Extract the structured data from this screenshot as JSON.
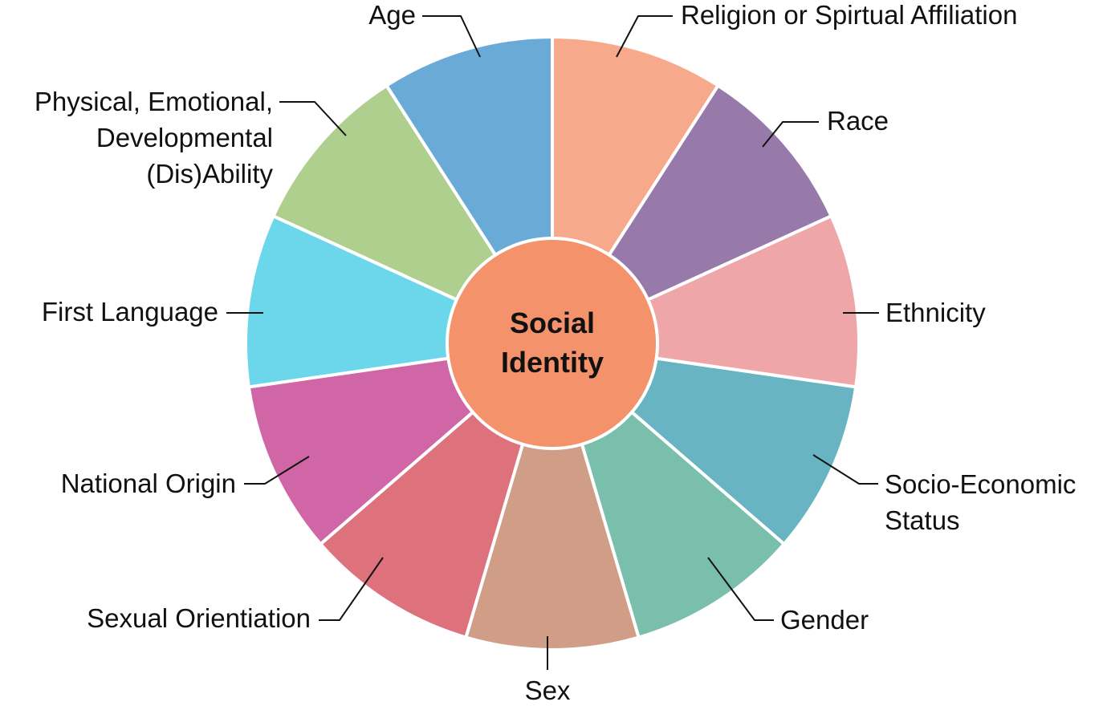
{
  "center": {
    "line1": "Social",
    "line2": "Identity",
    "color": "#F3926B"
  },
  "segments": [
    {
      "name": "religion",
      "lines": [
        "Religion or Spirtual Affiliation"
      ],
      "color": "#F7AA8B"
    },
    {
      "name": "race",
      "lines": [
        "Race"
      ],
      "color": "#977AAA"
    },
    {
      "name": "ethnicity",
      "lines": [
        "Ethnicity"
      ],
      "color": "#EEA6A9"
    },
    {
      "name": "socio-economic-status",
      "lines": [
        "Socio-Economic",
        "Status"
      ],
      "color": "#68B4C2"
    },
    {
      "name": "gender",
      "lines": [
        "Gender"
      ],
      "color": "#7ABFAB"
    },
    {
      "name": "sex",
      "lines": [
        "Sex"
      ],
      "color": "#D09E87"
    },
    {
      "name": "sexual-orientation",
      "lines": [
        "Sexual Orientiation"
      ],
      "color": "#DD727D"
    },
    {
      "name": "national-origin",
      "lines": [
        "National Origin"
      ],
      "color": "#D066A6"
    },
    {
      "name": "first-language",
      "lines": [
        "First Language"
      ],
      "color": "#6CD7EA"
    },
    {
      "name": "ability",
      "lines": [
        "Physical, Emotional,",
        "Developmental",
        "(Dis)Ability"
      ],
      "color": "#AECF8E"
    },
    {
      "name": "age",
      "lines": [
        "Age"
      ],
      "color": "#69ABD6"
    }
  ]
}
